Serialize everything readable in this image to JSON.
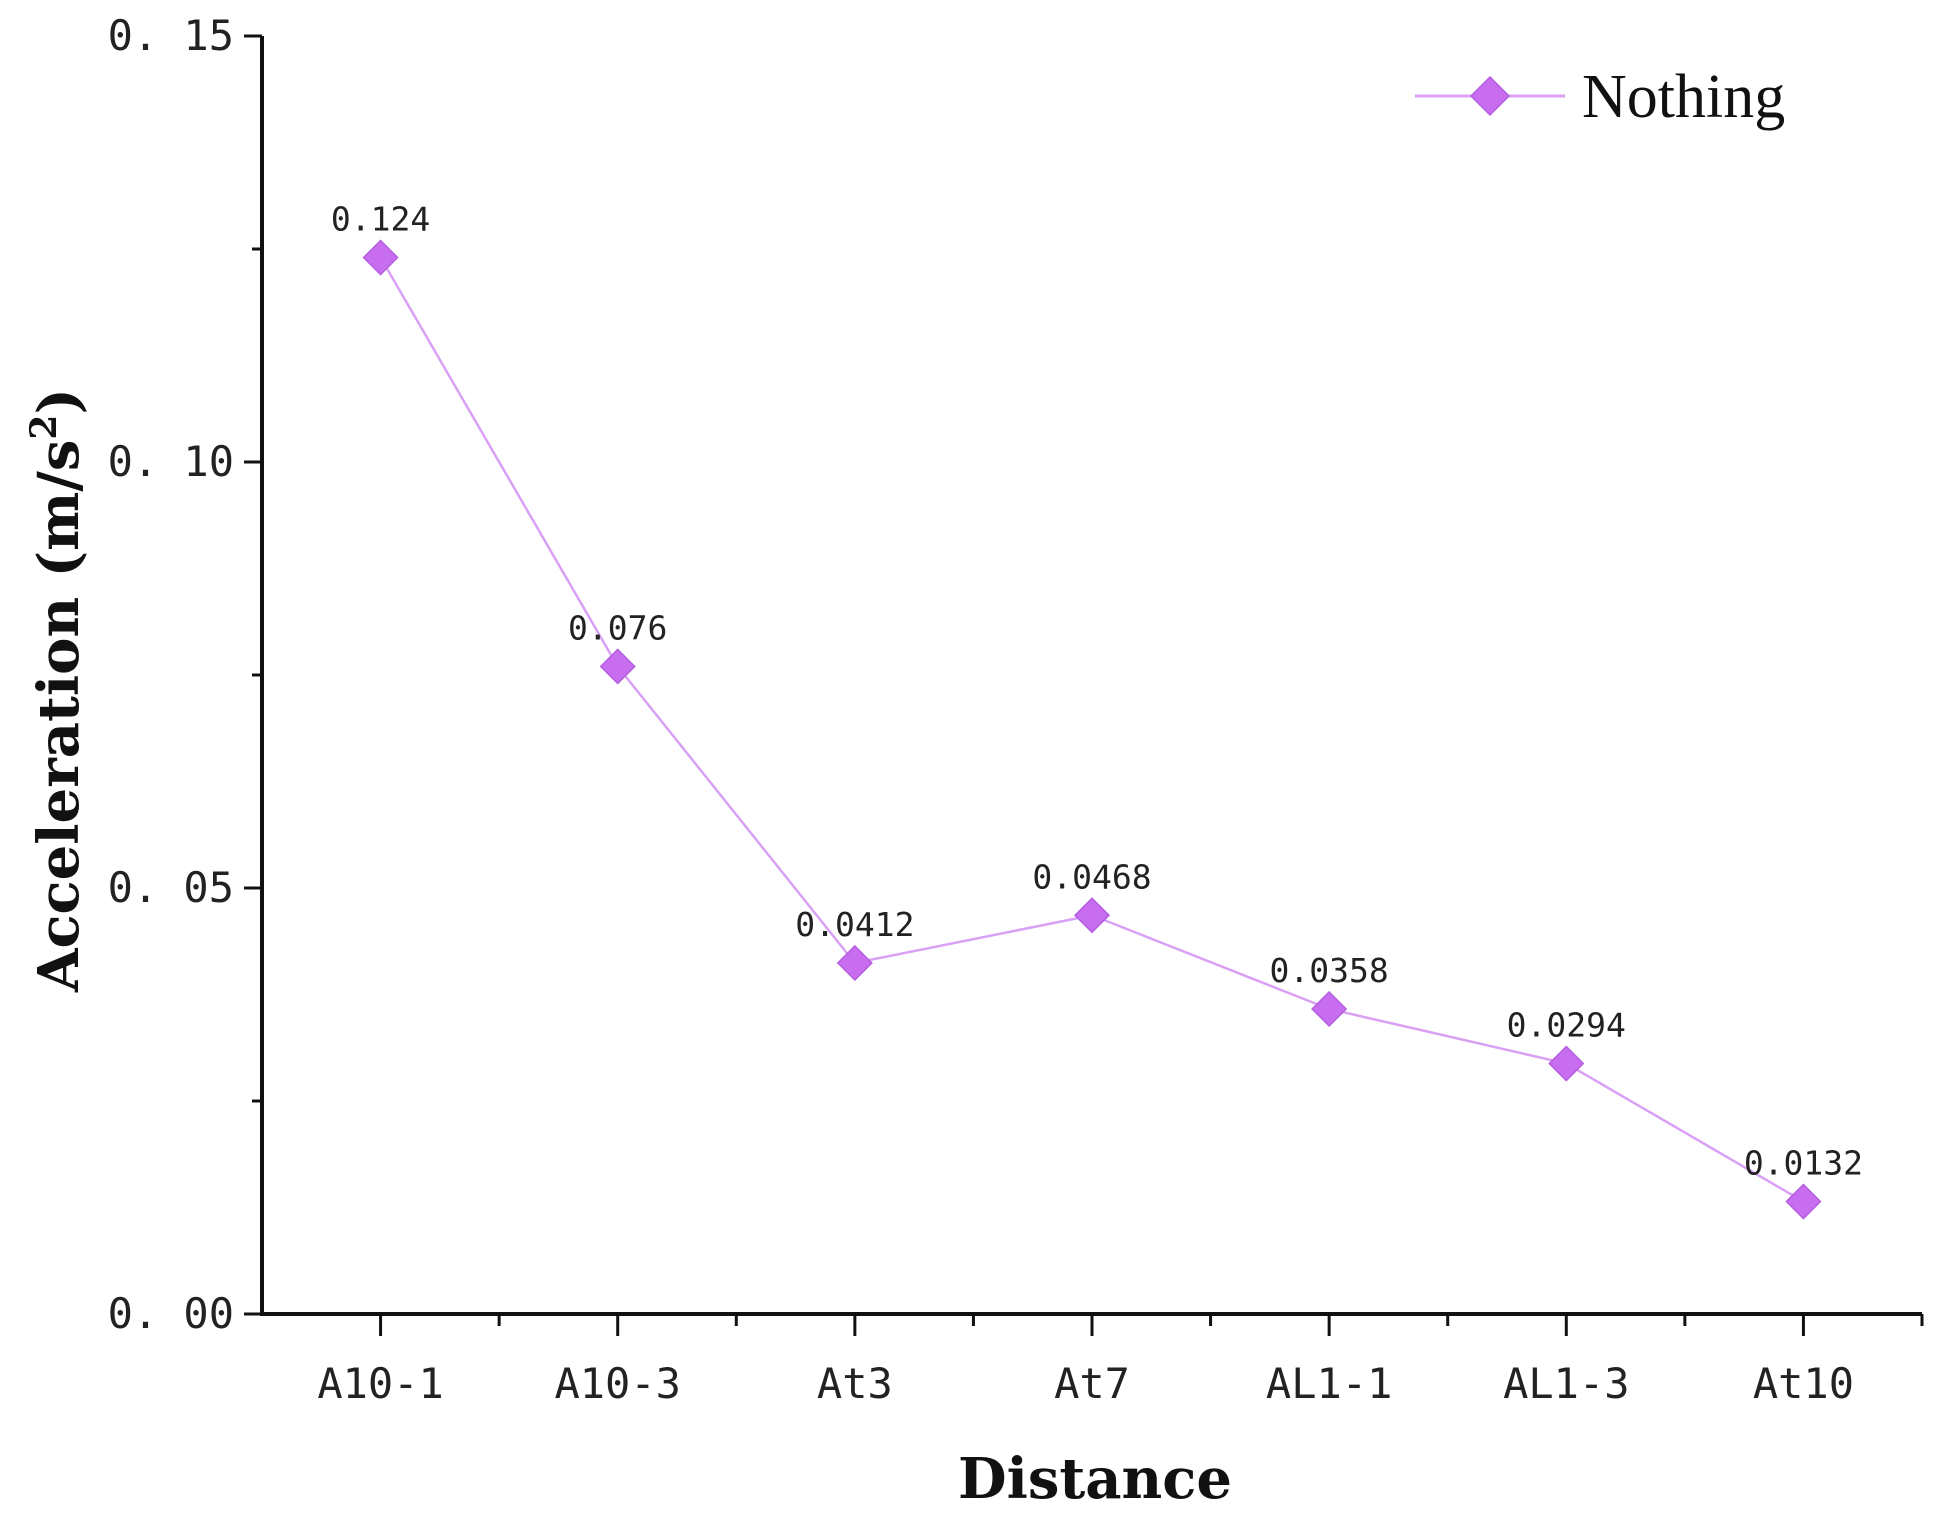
{
  "chart_data": {
    "type": "line",
    "title": "",
    "categories": [
      "A10-1",
      "A10-3",
      "At3",
      "At7",
      "AL1-1",
      "AL1-3",
      "At10"
    ],
    "series": [
      {
        "name": "Nothing",
        "values": [
          0.124,
          0.076,
          0.0412,
          0.0468,
          0.0358,
          0.0294,
          0.0132
        ],
        "value_labels": [
          "0.124",
          "0.076",
          "0.0412",
          "0.0468",
          "0.0358",
          "0.0294",
          "0.0132"
        ],
        "color": "#c86cf0",
        "line_color": "#d9a0f5",
        "marker": "diamond"
      }
    ],
    "xlabel": "Distance",
    "ylabel": "Acceleration (m/s²)",
    "ylabel_main": "Acceleration (m/s",
    "ylabel_sup": "2",
    "ylabel_end": ")",
    "ylim": [
      0,
      0.15
    ],
    "yticks": [
      0.0,
      0.05,
      0.1,
      0.15
    ],
    "ytick_labels": [
      "0. 00",
      "0. 05",
      "0. 10",
      "0. 15"
    ],
    "grid": false,
    "legend_position": "top-right"
  }
}
